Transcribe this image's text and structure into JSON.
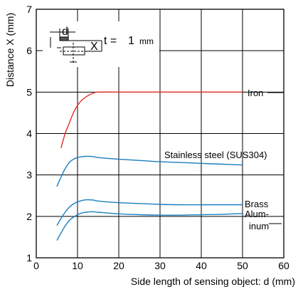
{
  "chart_data": {
    "type": "line",
    "title": "",
    "xlabel": "Side length of sensing object: d (mm)",
    "ylabel": "Distance X (mm)",
    "xlim": [
      0,
      60
    ],
    "ylim": [
      1,
      7
    ],
    "x_ticks": [
      0,
      10,
      20,
      30,
      40,
      50,
      60
    ],
    "y_ticks": [
      1,
      2,
      3,
      4,
      5,
      6,
      7
    ],
    "grid": true,
    "series": [
      {
        "name": "Iron",
        "label_lines": [
          "Iron"
        ],
        "color": "#e0302a",
        "x": [
          6,
          7,
          8,
          9,
          10,
          11,
          12,
          13,
          14,
          15,
          20,
          30,
          40,
          50
        ],
        "y": [
          3.65,
          4.0,
          4.25,
          4.5,
          4.68,
          4.8,
          4.88,
          4.94,
          4.98,
          5.0,
          5.0,
          5.0,
          5.0,
          5.0
        ]
      },
      {
        "name": "Stainless steel (SUS304)",
        "label_lines": [
          "Stainless steel (SUS304)"
        ],
        "color": "#1a7fc1",
        "x": [
          5,
          6,
          7,
          8,
          9,
          10,
          11,
          12,
          13,
          14,
          15,
          20,
          25,
          30,
          35,
          40,
          45,
          50
        ],
        "y": [
          2.72,
          2.95,
          3.15,
          3.3,
          3.38,
          3.42,
          3.44,
          3.45,
          3.45,
          3.44,
          3.42,
          3.38,
          3.35,
          3.32,
          3.3,
          3.28,
          3.26,
          3.24
        ]
      },
      {
        "name": "Brass",
        "label_lines": [
          "Brass"
        ],
        "color": "#1a7fc1",
        "x": [
          5,
          6,
          7,
          8,
          9,
          10,
          11,
          12,
          13,
          14,
          15,
          20,
          25,
          30,
          35,
          40,
          45,
          50
        ],
        "y": [
          1.78,
          1.95,
          2.1,
          2.22,
          2.3,
          2.35,
          2.38,
          2.4,
          2.4,
          2.39,
          2.37,
          2.33,
          2.31,
          2.29,
          2.28,
          2.28,
          2.28,
          2.28
        ]
      },
      {
        "name": "Aluminum",
        "label_lines": [
          "Alum-",
          "inum"
        ],
        "color": "#1a7fc1",
        "x": [
          5,
          6,
          7,
          8,
          9,
          10,
          11,
          12,
          13,
          14,
          15,
          20,
          25,
          30,
          35,
          40,
          45,
          50
        ],
        "y": [
          1.42,
          1.6,
          1.77,
          1.9,
          1.98,
          2.04,
          2.08,
          2.1,
          2.11,
          2.11,
          2.1,
          2.06,
          2.04,
          2.03,
          2.03,
          2.04,
          2.05,
          2.07
        ]
      }
    ],
    "inset": {
      "square_label": "d",
      "distance_label": "X",
      "t_label": "t =",
      "t_value": "1",
      "t_unit": "mm"
    }
  }
}
